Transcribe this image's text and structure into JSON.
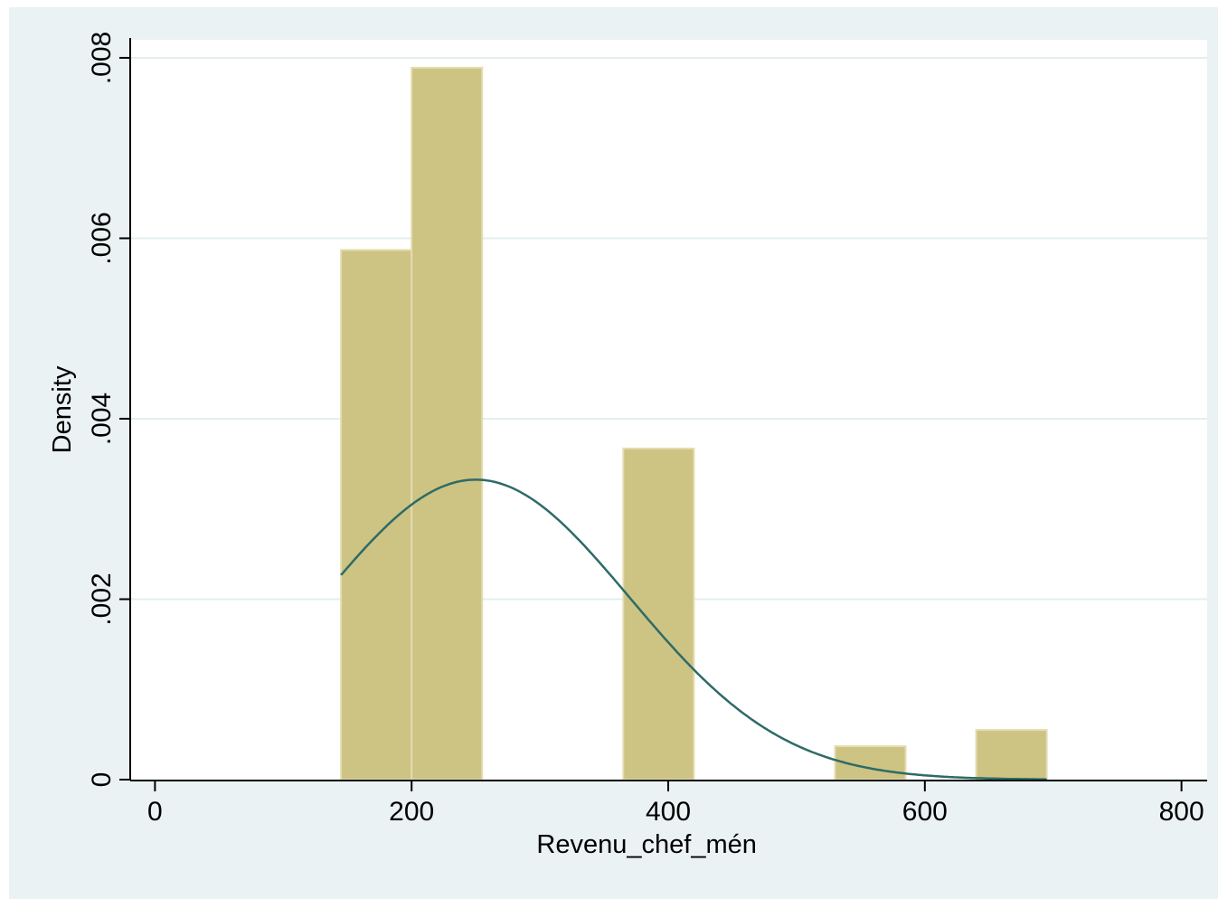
{
  "caption_fragment": "",
  "chart_data": {
    "type": "bar",
    "subtype": "histogram_with_normal_density",
    "xlabel": "Revenu_chef_mén",
    "ylabel": "Density",
    "xlim": [
      -20,
      820
    ],
    "ylim": [
      0,
      0.0082
    ],
    "x_ticks": [
      0,
      200,
      400,
      600,
      800
    ],
    "x_tick_labels": [
      "0",
      "200",
      "400",
      "600",
      "800"
    ],
    "y_ticks": [
      0,
      0.002,
      0.004,
      0.006,
      0.008
    ],
    "y_tick_labels": [
      "0",
      ".002",
      ".004",
      ".006",
      ".008"
    ],
    "grid": true,
    "bins": [
      {
        "start": 145,
        "end": 200,
        "density": 0.00587
      },
      {
        "start": 200,
        "end": 255,
        "density": 0.00789
      },
      {
        "start": 255,
        "end": 310,
        "density": 0
      },
      {
        "start": 310,
        "end": 365,
        "density": 0
      },
      {
        "start": 365,
        "end": 420,
        "density": 0.00367
      },
      {
        "start": 420,
        "end": 475,
        "density": 0
      },
      {
        "start": 475,
        "end": 530,
        "density": 0
      },
      {
        "start": 530,
        "end": 585,
        "density": 0.00037
      },
      {
        "start": 585,
        "end": 640,
        "density": 0
      },
      {
        "start": 640,
        "end": 695,
        "density": 0.00055
      }
    ],
    "normal_curve": {
      "mean": 250,
      "sd": 120,
      "x_range": [
        145,
        695
      ]
    },
    "colors": {
      "background": "#eaf2f3",
      "plot_area": "#ffffff",
      "bar_fill": "#cdc383",
      "bar_edge": "#e4dcb0",
      "curve": "#2e6b66",
      "grid": "#e3eef0"
    }
  }
}
